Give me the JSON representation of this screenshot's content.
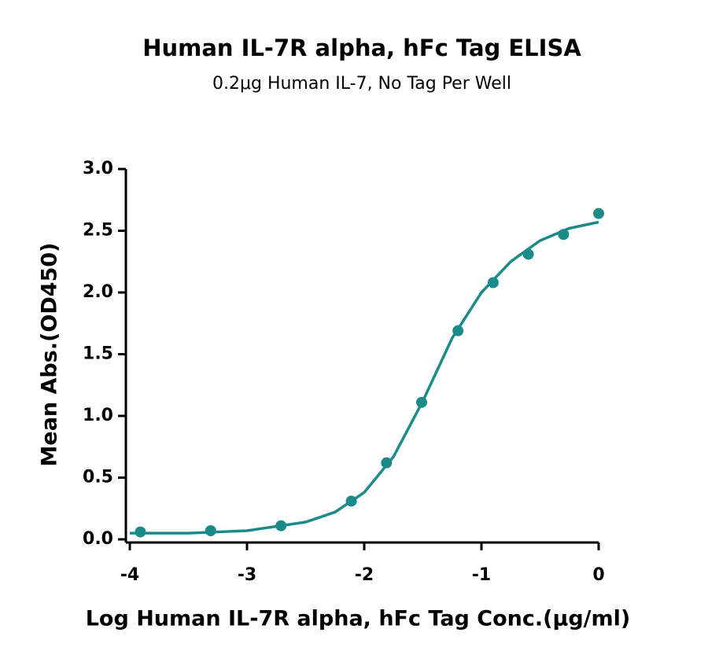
{
  "chart_data": {
    "type": "scatter",
    "title": "Human IL-7R alpha, hFc Tag ELISA",
    "subtitle": "0.2μg Human IL-7, No Tag Per Well",
    "x_label": "Log Human IL-7R alpha, hFc Tag Conc.(μg/ml)",
    "y_label": "Mean Abs.(OD450)",
    "xlim": [
      -4,
      0
    ],
    "ylim": [
      0,
      3
    ],
    "xticks": [
      -4,
      -3,
      -2,
      -1,
      0
    ],
    "yticks": [
      {
        "value": 0,
        "label": "0.0"
      },
      0.5,
      {
        "value": 1,
        "label": "1.0"
      },
      1.5,
      {
        "value": 2,
        "label": "2.0"
      },
      2.5,
      {
        "value": 3,
        "label": "3.0"
      }
    ],
    "series": [
      {
        "style": "line",
        "color": "#1b8b8a",
        "x": [
          -4,
          -3.5,
          -3,
          -2.5,
          -2.25,
          -2,
          -1.75,
          -1.5,
          -1.25,
          -1,
          -0.75,
          -0.5,
          -0.25,
          0
        ],
        "values": [
          0.05,
          0.05,
          0.07,
          0.14,
          0.22,
          0.38,
          0.67,
          1.12,
          1.63,
          2.0,
          2.25,
          2.42,
          2.52,
          2.57
        ]
      },
      {
        "style": "markers",
        "color": "#1b8b8a",
        "x": [
          -3.91,
          -3.31,
          -2.71,
          -2.11,
          -1.81,
          -1.51,
          -1.2,
          -0.9,
          -0.6,
          -0.3,
          0
        ],
        "values": [
          0.06,
          0.07,
          0.11,
          0.31,
          0.62,
          1.11,
          1.69,
          2.08,
          2.31,
          2.47,
          2.64
        ]
      }
    ]
  }
}
